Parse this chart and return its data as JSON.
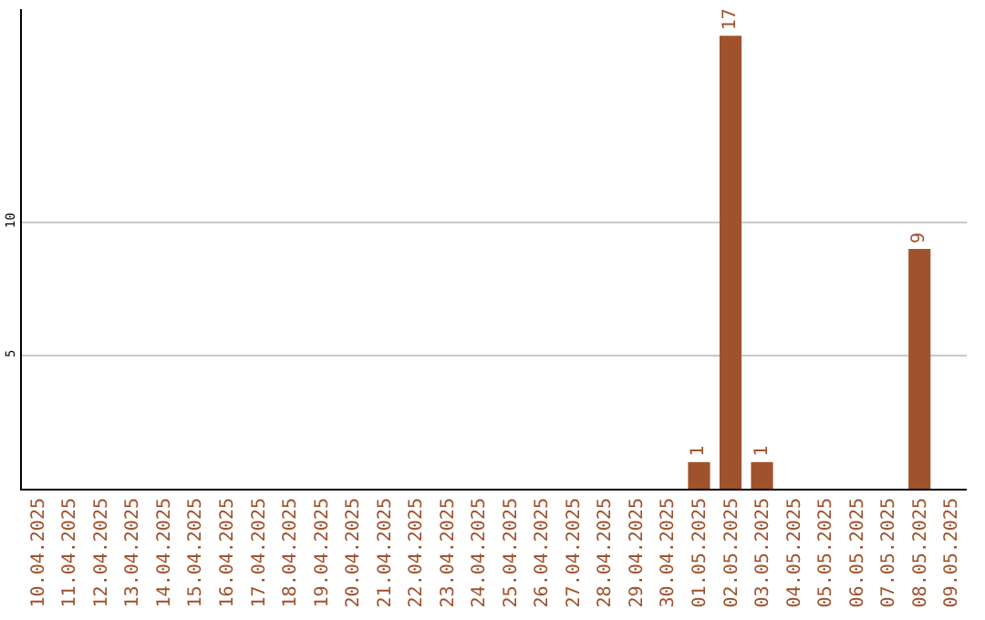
{
  "chart_data": {
    "type": "bar",
    "categories": [
      "10.04.2025",
      "11.04.2025",
      "12.04.2025",
      "13.04.2025",
      "14.04.2025",
      "15.04.2025",
      "16.04.2025",
      "17.04.2025",
      "18.04.2025",
      "19.04.2025",
      "20.04.2025",
      "21.04.2025",
      "22.04.2025",
      "23.04.2025",
      "24.04.2025",
      "25.04.2025",
      "26.04.2025",
      "27.04.2025",
      "28.04.2025",
      "29.04.2025",
      "30.04.2025",
      "01.05.2025",
      "02.05.2025",
      "03.05.2025",
      "04.05.2025",
      "05.05.2025",
      "06.05.2025",
      "07.05.2025",
      "08.05.2025",
      "09.05.2025"
    ],
    "values": [
      0,
      0,
      0,
      0,
      0,
      0,
      0,
      0,
      0,
      0,
      0,
      0,
      0,
      0,
      0,
      0,
      0,
      0,
      0,
      0,
      0,
      1,
      17,
      1,
      0,
      0,
      0,
      0,
      9,
      0
    ],
    "value_labels": [
      null,
      null,
      null,
      null,
      null,
      null,
      null,
      null,
      null,
      null,
      null,
      null,
      null,
      null,
      null,
      null,
      null,
      null,
      null,
      null,
      null,
      "1",
      "17",
      "1",
      null,
      null,
      null,
      null,
      "9",
      null
    ],
    "color": "#a0522d",
    "ylim": [
      0,
      18
    ],
    "yticks": [
      5,
      10
    ],
    "grid": "y"
  }
}
